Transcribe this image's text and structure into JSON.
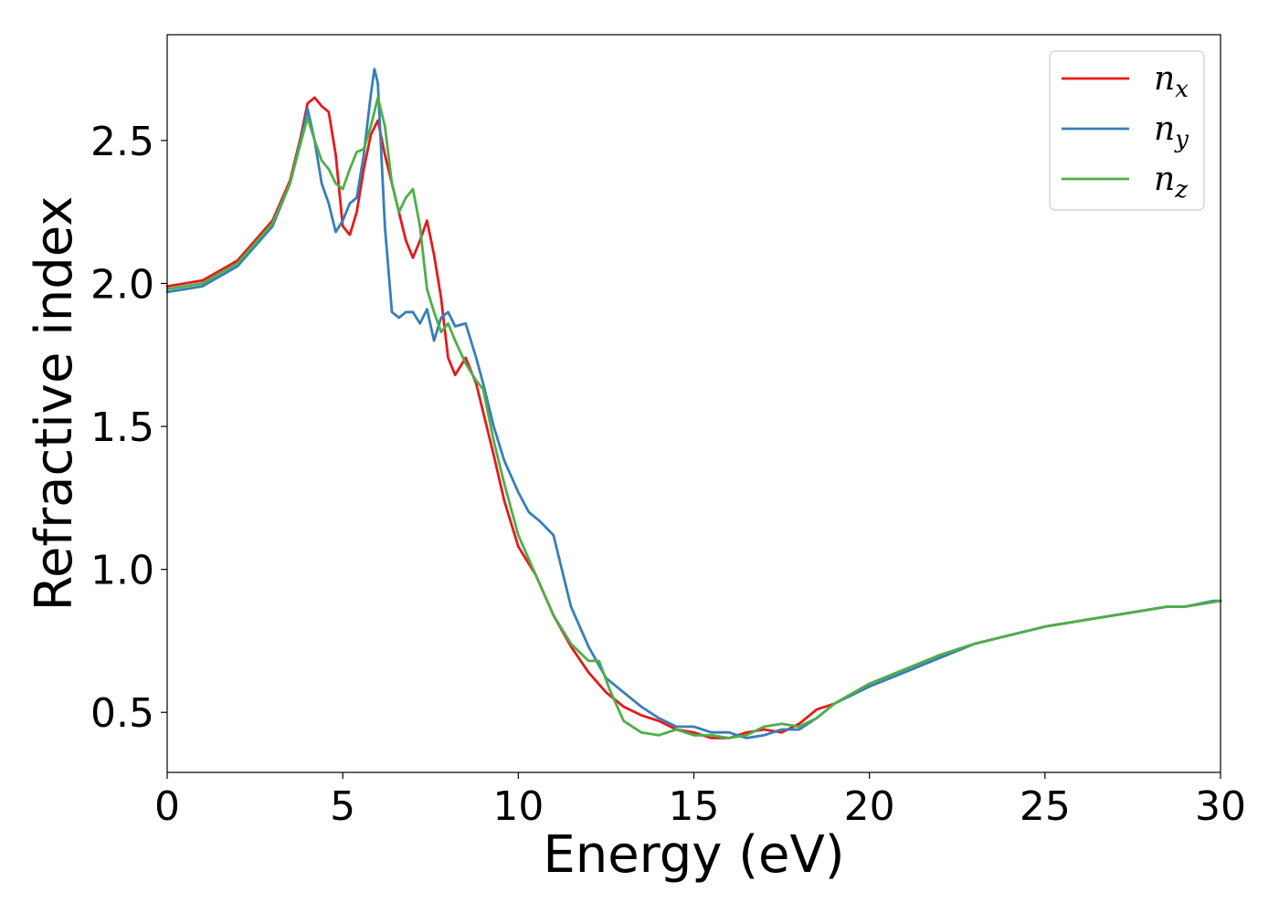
{
  "chart_data": {
    "type": "line",
    "xlabel": "Energy (eV)",
    "ylabel": "Refractive index",
    "xlim": [
      0,
      30
    ],
    "ylim": [
      0.29,
      2.87
    ],
    "xticks": [
      0,
      5,
      10,
      15,
      20,
      25,
      30
    ],
    "xtick_labels": [
      "0",
      "5",
      "10",
      "15",
      "20",
      "25",
      "30"
    ],
    "yticks": [
      0.5,
      1.0,
      1.5,
      2.0,
      2.5
    ],
    "ytick_labels": [
      "0.5",
      "1.0",
      "1.5",
      "2.0",
      "2.5"
    ],
    "grid": false,
    "legend_position": "top-right",
    "series": [
      {
        "name": "n",
        "subscript": "x",
        "color": "#e41a1c",
        "x": [
          0,
          1,
          2,
          3,
          3.5,
          3.8,
          4.0,
          4.2,
          4.4,
          4.6,
          4.8,
          5.0,
          5.2,
          5.4,
          5.6,
          5.8,
          6.0,
          6.2,
          6.5,
          6.8,
          7.0,
          7.2,
          7.4,
          7.6,
          7.8,
          8.0,
          8.2,
          8.5,
          8.8,
          9.0,
          9.3,
          9.6,
          10.0,
          10.5,
          11.0,
          11.5,
          12.0,
          12.5,
          13.0,
          13.5,
          14.0,
          14.5,
          15.0,
          15.5,
          16.0,
          16.5,
          17.0,
          17.5,
          18.0,
          18.5,
          19.0,
          20.0,
          21.0,
          22.0,
          23.0,
          24.0,
          25.0,
          26.0,
          27.0,
          28.0,
          28.5,
          29.0,
          30.0
        ],
        "y": [
          1.99,
          2.01,
          2.08,
          2.22,
          2.36,
          2.51,
          2.63,
          2.65,
          2.62,
          2.6,
          2.45,
          2.2,
          2.17,
          2.25,
          2.4,
          2.52,
          2.57,
          2.45,
          2.3,
          2.15,
          2.09,
          2.15,
          2.22,
          2.1,
          1.95,
          1.74,
          1.68,
          1.74,
          1.65,
          1.55,
          1.4,
          1.24,
          1.08,
          0.98,
          0.84,
          0.73,
          0.64,
          0.57,
          0.52,
          0.49,
          0.47,
          0.44,
          0.43,
          0.41,
          0.41,
          0.43,
          0.44,
          0.43,
          0.46,
          0.51,
          0.53,
          0.6,
          0.65,
          0.7,
          0.74,
          0.77,
          0.8,
          0.82,
          0.84,
          0.86,
          0.87,
          0.87,
          0.89
        ]
      },
      {
        "name": "n",
        "subscript": "y",
        "color": "#377eb8",
        "x": [
          0,
          1,
          2,
          3,
          3.5,
          3.8,
          4.0,
          4.2,
          4.4,
          4.6,
          4.8,
          5.0,
          5.2,
          5.4,
          5.6,
          5.8,
          5.9,
          6.0,
          6.2,
          6.4,
          6.6,
          6.8,
          7.0,
          7.2,
          7.4,
          7.6,
          7.8,
          8.0,
          8.2,
          8.5,
          8.8,
          9.0,
          9.3,
          9.6,
          10.0,
          10.3,
          10.6,
          11.0,
          11.5,
          12.0,
          12.5,
          13.0,
          13.5,
          14.0,
          14.5,
          15.0,
          15.5,
          16.0,
          16.5,
          17.0,
          17.5,
          18.0,
          18.5,
          19.0,
          20.0,
          21.0,
          22.0,
          23.0,
          24.0,
          25.0,
          26.0,
          27.0,
          28.0,
          28.5,
          29.0,
          29.8,
          30.0
        ],
        "y": [
          1.97,
          1.99,
          2.06,
          2.2,
          2.35,
          2.5,
          2.61,
          2.5,
          2.35,
          2.28,
          2.18,
          2.22,
          2.28,
          2.3,
          2.45,
          2.66,
          2.75,
          2.7,
          2.2,
          1.9,
          1.88,
          1.9,
          1.9,
          1.86,
          1.91,
          1.8,
          1.88,
          1.9,
          1.85,
          1.86,
          1.74,
          1.65,
          1.5,
          1.38,
          1.27,
          1.2,
          1.17,
          1.12,
          0.87,
          0.73,
          0.62,
          0.57,
          0.52,
          0.48,
          0.45,
          0.45,
          0.43,
          0.43,
          0.41,
          0.42,
          0.44,
          0.44,
          0.48,
          0.53,
          0.59,
          0.64,
          0.69,
          0.74,
          0.77,
          0.8,
          0.82,
          0.84,
          0.86,
          0.87,
          0.87,
          0.89,
          0.89
        ]
      },
      {
        "name": "n",
        "subscript": "z",
        "color": "#4daf4a",
        "x": [
          0,
          1,
          2,
          3,
          3.5,
          3.8,
          4.0,
          4.2,
          4.4,
          4.6,
          4.8,
          5.0,
          5.2,
          5.4,
          5.6,
          5.8,
          6.0,
          6.2,
          6.4,
          6.6,
          6.8,
          7.0,
          7.2,
          7.4,
          7.6,
          7.8,
          8.0,
          8.2,
          8.5,
          8.8,
          9.0,
          9.3,
          9.6,
          10.0,
          10.5,
          11.0,
          11.5,
          12.0,
          12.3,
          12.6,
          13.0,
          13.5,
          14.0,
          14.5,
          15.0,
          15.5,
          16.0,
          16.5,
          17.0,
          17.5,
          18.0,
          18.5,
          19.0,
          20.0,
          21.0,
          22.0,
          23.0,
          24.0,
          25.0,
          26.0,
          27.0,
          28.0,
          28.5,
          29.0,
          30.0
        ],
        "y": [
          1.98,
          2.0,
          2.07,
          2.21,
          2.35,
          2.49,
          2.58,
          2.5,
          2.43,
          2.4,
          2.35,
          2.33,
          2.4,
          2.46,
          2.47,
          2.55,
          2.65,
          2.55,
          2.35,
          2.25,
          2.3,
          2.33,
          2.2,
          1.98,
          1.9,
          1.83,
          1.86,
          1.8,
          1.72,
          1.66,
          1.63,
          1.45,
          1.3,
          1.12,
          0.98,
          0.84,
          0.74,
          0.68,
          0.68,
          0.58,
          0.47,
          0.43,
          0.42,
          0.44,
          0.42,
          0.42,
          0.41,
          0.42,
          0.45,
          0.46,
          0.45,
          0.48,
          0.53,
          0.6,
          0.65,
          0.7,
          0.74,
          0.77,
          0.8,
          0.82,
          0.84,
          0.86,
          0.87,
          0.87,
          0.89
        ]
      }
    ]
  }
}
